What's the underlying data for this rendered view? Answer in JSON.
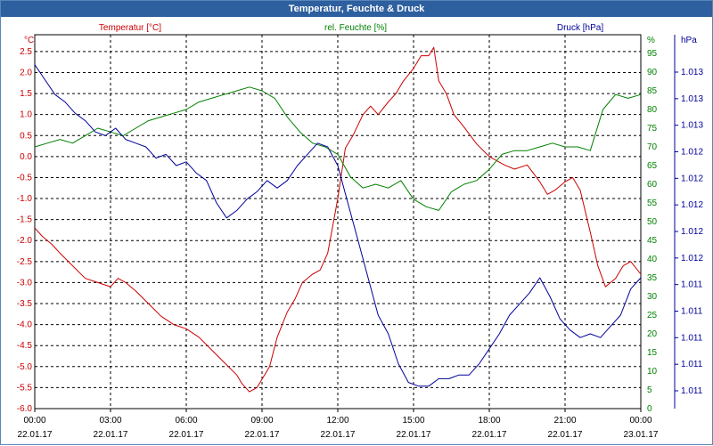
{
  "window": {
    "title": "Temperatur, Feuchte & Druck"
  },
  "chart_data": {
    "type": "line",
    "title": "Temperatur, Feuchte & Druck",
    "colors": {
      "temperature": "#cc0000",
      "humidity": "#008000",
      "pressure": "#000099",
      "grid": "#000000",
      "title_bar": "#2e5f9e"
    },
    "x_ticks": [
      {
        "time": "00:00",
        "date": "22.01.17"
      },
      {
        "time": "03:00",
        "date": "22.01.17"
      },
      {
        "time": "06:00",
        "date": "22.01.17"
      },
      {
        "time": "09:00",
        "date": "22.01.17"
      },
      {
        "time": "12:00",
        "date": "22.01.17"
      },
      {
        "time": "15:00",
        "date": "22.01.17"
      },
      {
        "time": "18:00",
        "date": "22.01.17"
      },
      {
        "time": "21:00",
        "date": "22.01.17"
      },
      {
        "time": "00:00",
        "date": "23.01.17"
      }
    ],
    "x_range_hours": [
      0,
      24
    ],
    "axes": {
      "temperature": {
        "label": "Temperatur [°C]",
        "unit": "°C",
        "ylim": [
          -6.0,
          2.9
        ],
        "ticks": [
          "2.5",
          "2.0",
          "1.5",
          "1.0",
          "0.5",
          "0.0",
          "-0.5",
          "-1.0",
          "-1.5",
          "-2.0",
          "-2.5",
          "-3.0",
          "-3.5",
          "-4.0",
          "-4.5",
          "-5.0",
          "-5.5",
          "-6.0"
        ],
        "tick_values": [
          2.5,
          2.0,
          1.5,
          1.0,
          0.5,
          0.0,
          -0.5,
          -1.0,
          -1.5,
          -2.0,
          -2.5,
          -3.0,
          -3.5,
          -4.0,
          -4.5,
          -5.0,
          -5.5,
          -6.0
        ]
      },
      "humidity": {
        "label": "rel. Feuchte [%]",
        "unit": "%",
        "ylim": [
          0,
          100
        ],
        "ticks": [
          "95",
          "90",
          "85",
          "80",
          "75",
          "70",
          "65",
          "60",
          "55",
          "50",
          "45",
          "40",
          "35",
          "30",
          "25",
          "20",
          "15",
          "10",
          "5",
          "0"
        ],
        "tick_values": [
          95,
          90,
          85,
          80,
          75,
          70,
          65,
          60,
          55,
          50,
          45,
          40,
          35,
          30,
          25,
          20,
          15,
          10,
          5,
          0
        ]
      },
      "pressure": {
        "label": "Druck [hPa]",
        "unit": "hPa",
        "ticks": [
          "1.013",
          "1.013",
          "1.013",
          "1.012",
          "1.012",
          "1.012",
          "1.012",
          "1.012",
          "1.011",
          "1.011",
          "1.011",
          "1.011",
          "1.011"
        ]
      }
    },
    "series": [
      {
        "name": "Temperatur [°C]",
        "axis": "temperature",
        "x": [
          0,
          0.3,
          0.7,
          1,
          1.5,
          2,
          2.5,
          3,
          3.3,
          3.6,
          4,
          4.5,
          5,
          5.5,
          6,
          6.5,
          7,
          7.5,
          8,
          8.2,
          8.5,
          8.8,
          9,
          9.3,
          9.6,
          10,
          10.3,
          10.6,
          11,
          11.3,
          11.6,
          12,
          12.3,
          12.6,
          13,
          13.3,
          13.6,
          14,
          14.3,
          14.6,
          15,
          15.3,
          15.6,
          15.8,
          16,
          16.3,
          16.6,
          17,
          17.5,
          18,
          18.3,
          18.6,
          19,
          19.5,
          20,
          20.3,
          20.6,
          21,
          21.3,
          21.6,
          22,
          22.3,
          22.6,
          23,
          23.3,
          23.6,
          24
        ],
        "y": [
          -1.7,
          -1.9,
          -2.1,
          -2.3,
          -2.6,
          -2.9,
          -3.0,
          -3.1,
          -2.9,
          -3.0,
          -3.2,
          -3.5,
          -3.8,
          -4.0,
          -4.1,
          -4.3,
          -4.6,
          -4.9,
          -5.2,
          -5.4,
          -5.6,
          -5.5,
          -5.3,
          -5.0,
          -4.3,
          -3.7,
          -3.4,
          -3.0,
          -2.8,
          -2.7,
          -2.3,
          -1.0,
          0.2,
          0.5,
          1.0,
          1.2,
          1.0,
          1.3,
          1.5,
          1.8,
          2.1,
          2.4,
          2.4,
          2.6,
          1.8,
          1.5,
          1.0,
          0.7,
          0.3,
          0.0,
          -0.1,
          -0.2,
          -0.3,
          -0.2,
          -0.6,
          -0.9,
          -0.8,
          -0.6,
          -0.5,
          -0.8,
          -1.8,
          -2.6,
          -3.1,
          -2.9,
          -2.6,
          -2.5,
          -2.8
        ],
        "color": "#cc0000"
      },
      {
        "name": "rel. Feuchte [%]",
        "axis": "humidity",
        "x": [
          0,
          0.5,
          1,
          1.5,
          2,
          2.5,
          3,
          3.5,
          4,
          4.5,
          5,
          5.5,
          6,
          6.5,
          7,
          7.5,
          8,
          8.5,
          9,
          9.5,
          10,
          10.5,
          11,
          11.5,
          12,
          12.5,
          13,
          13.5,
          14,
          14.5,
          15,
          15.5,
          16,
          16.5,
          17,
          17.5,
          18,
          18.5,
          19,
          19.5,
          20,
          20.5,
          21,
          21.5,
          22,
          22.5,
          23,
          23.5,
          24
        ],
        "y": [
          70,
          71,
          72,
          71,
          73,
          75,
          74,
          73,
          75,
          77,
          78,
          79,
          80,
          82,
          83,
          84,
          85,
          86,
          85,
          83,
          78,
          74,
          71,
          70,
          68,
          62,
          59,
          60,
          59,
          61,
          56,
          54,
          53,
          58,
          60,
          61,
          64,
          68,
          69,
          69,
          70,
          71,
          70,
          70,
          69,
          80,
          84,
          83,
          84
        ],
        "color": "#008000"
      },
      {
        "name": "Druck [hPa]",
        "axis": "pressure",
        "x": [
          0,
          0.4,
          0.8,
          1.2,
          1.6,
          2,
          2.4,
          2.8,
          3.2,
          3.6,
          4,
          4.4,
          4.8,
          5.2,
          5.6,
          6,
          6.4,
          6.8,
          7.2,
          7.6,
          8,
          8.4,
          8.8,
          9.2,
          9.6,
          10,
          10.4,
          10.8,
          11.2,
          11.6,
          12,
          12.4,
          12.8,
          13.2,
          13.6,
          14,
          14.4,
          14.8,
          15.2,
          15.6,
          16,
          16.4,
          16.8,
          17.2,
          17.6,
          18,
          18.4,
          18.8,
          19.2,
          19.6,
          20,
          20.4,
          20.8,
          21.2,
          21.6,
          22,
          22.4,
          22.8,
          23.2,
          23.6,
          24
        ],
        "y": [
          92,
          88,
          84,
          82,
          79,
          77,
          74,
          73,
          75,
          72,
          71,
          70,
          67,
          68,
          65,
          66,
          63,
          61,
          55,
          51,
          53,
          56,
          58,
          61,
          59,
          61,
          65,
          68,
          71,
          70,
          65,
          55,
          45,
          35,
          25,
          20,
          12,
          7,
          6,
          6,
          8,
          8,
          9,
          9,
          12,
          16,
          20,
          25,
          28,
          31,
          35,
          30,
          24,
          21,
          19,
          20,
          19,
          22,
          25,
          32,
          35
        ],
        "color": "#000099"
      }
    ]
  }
}
